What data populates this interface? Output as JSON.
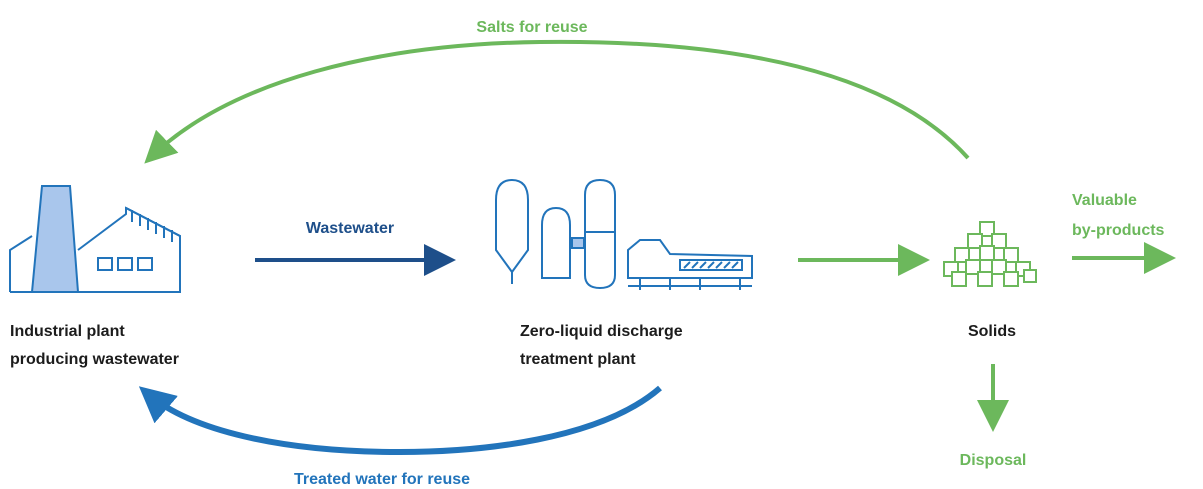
{
  "nodes": [
    {
      "label": [
        "Industrial plant",
        "producing wastewater"
      ]
    },
    {
      "label": [
        "Zero-liquid discharge",
        "treatment plant"
      ]
    },
    {
      "label": [
        "Solids"
      ]
    },
    {
      "label": [
        "Valuable",
        "by-products"
      ]
    },
    {
      "label": [
        "Disposal"
      ]
    }
  ],
  "flows": [
    {
      "label": "Wastewater"
    },
    {
      "label": "Salts for reuse"
    },
    {
      "label": "Treated water for reuse"
    }
  ]
}
